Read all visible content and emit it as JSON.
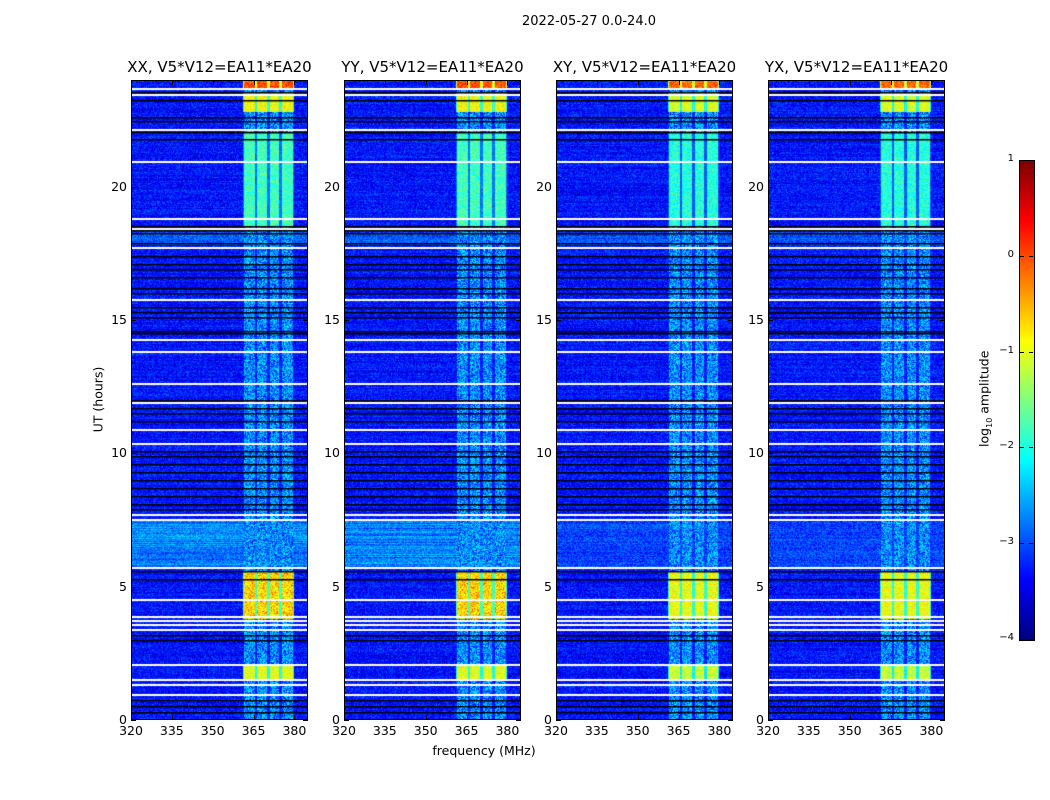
{
  "chart_data": {
    "type": "heatmap",
    "title": "2022-05-27 0.0-24.0",
    "xlabel": "frequency (MHz)",
    "ylabel": "UT (hours)",
    "xlim": [
      320,
      385
    ],
    "ylim": [
      0,
      24
    ],
    "xticks": [
      320,
      335,
      350,
      365,
      380
    ],
    "yticks": [
      0,
      5,
      10,
      15,
      20
    ],
    "panels": [
      {
        "title": "XX, V5*V12=EA11*EA20",
        "polarization": "XX"
      },
      {
        "title": "YY, V5*V12=EA11*EA20",
        "polarization": "YY"
      },
      {
        "title": "XY, V5*V12=EA11*EA20",
        "polarization": "XY"
      },
      {
        "title": "YX, V5*V12=EA11*EA20",
        "polarization": "YX"
      }
    ],
    "colorbar": {
      "colormap": "jet",
      "range": [
        -4,
        1
      ],
      "ticks": [
        "1",
        "0",
        "−1",
        "−2",
        "−3",
        "−4"
      ],
      "label_main": "log",
      "label_sub": "10",
      "label_rest": " amplitude"
    },
    "background_log_amplitude": -3.3,
    "rfi_bands_mhz": [
      [
        361.5,
        365.5
      ],
      [
        366.2,
        370.0
      ],
      [
        371.0,
        374.5
      ],
      [
        375.5,
        379.5
      ]
    ],
    "rfi_intervals": [
      {
        "ut": [
          23.7,
          24.0
        ],
        "level": 0.0
      },
      {
        "ut": [
          22.8,
          23.5
        ],
        "level": -0.9
      },
      {
        "ut": [
          18.5,
          22.0
        ],
        "level": -1.8
      },
      {
        "ut": [
          3.8,
          5.6
        ],
        "level": -0.8
      },
      {
        "ut": [
          1.5,
          2.1
        ],
        "level": -1.0
      }
    ],
    "flagged_rows_ut": [
      23.66,
      23.44,
      22.13,
      20.93,
      18.79,
      18.41,
      17.7,
      15.75,
      14.25,
      13.8,
      12.6,
      11.89,
      10.88,
      10.35,
      7.69,
      7.5,
      5.7,
      4.5,
      3.86,
      3.71,
      3.56,
      3.38,
      2.06,
      1.5,
      1.31,
      0.94
    ],
    "zero_rows_ut": [
      23.55,
      23.25,
      22.6,
      22.45,
      22.06,
      21.8,
      18.52,
      18.37,
      18.26,
      17.9,
      17.4,
      17.1,
      16.9,
      16.6,
      16.2,
      16.0,
      15.5,
      15.3,
      15.1,
      14.6,
      14.5,
      12.0,
      11.7,
      11.5,
      11.2,
      10.1,
      9.9,
      9.6,
      9.3,
      9.0,
      8.7,
      8.4,
      8.1,
      7.9,
      5.6,
      5.3,
      3.2,
      3.0,
      0.75,
      0.53,
      0.3
    ]
  }
}
